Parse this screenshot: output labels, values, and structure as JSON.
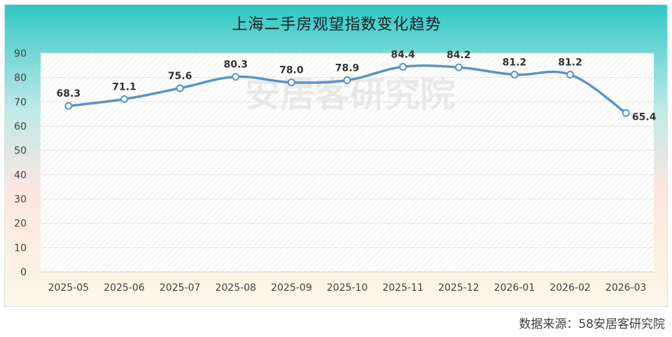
{
  "chart_data": {
    "type": "line",
    "title": "上海二手房观望指数变化趋势",
    "categories": [
      "2025-05",
      "2025-06",
      "2025-07",
      "2025-08",
      "2025-09",
      "2025-10",
      "2025-11",
      "2025-12",
      "2026-01",
      "2026-02",
      "2026-03"
    ],
    "values": [
      68.3,
      71.1,
      75.6,
      80.3,
      78.0,
      78.9,
      84.4,
      84.2,
      81.2,
      81.2,
      65.4
    ],
    "value_labels": [
      "68.3",
      "71.1",
      "75.6",
      "80.3",
      "78.0",
      "78.9",
      "84.4",
      "84.2",
      "81.2",
      "81.2",
      "65.4"
    ],
    "yticks": [
      "0",
      "10",
      "20",
      "30",
      "40",
      "50",
      "60",
      "70",
      "80",
      "90"
    ],
    "ylim": [
      0,
      90
    ],
    "grid": true,
    "line_color": "#5b93c8",
    "marker_fill": "#ffffff"
  },
  "watermark": "安居客研究院",
  "source": "数据来源：58安居客研究院"
}
